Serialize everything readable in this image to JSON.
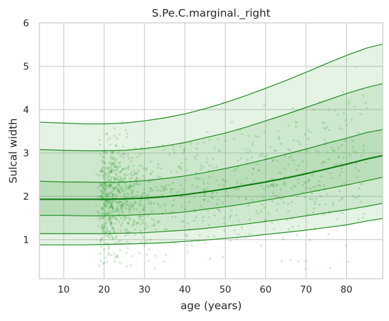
{
  "chart_data": {
    "type": "line",
    "title": "S.Pe.C.marginal._right",
    "xlabel": "age (years)",
    "ylabel": "Sulcal width",
    "xlim": [
      4,
      89
    ],
    "ylim": [
      0.1,
      6.0
    ],
    "xticks": [
      10,
      20,
      30,
      40,
      50,
      60,
      70,
      80
    ],
    "yticks": [
      1,
      2,
      3,
      4,
      5,
      6
    ],
    "grid": true,
    "colors": {
      "line": "#1e8c1e",
      "median": "#0a7a0a",
      "band": "#2ca02c",
      "points": "#2ca02c",
      "grid": "#cccccc",
      "frame": "#cccccc"
    },
    "percentile_x": [
      4,
      10,
      15,
      20,
      25,
      30,
      35,
      40,
      45,
      50,
      55,
      60,
      65,
      70,
      75,
      80,
      85,
      89
    ],
    "series": [
      {
        "values": [
          3.71,
          3.69,
          3.67,
          3.67,
          3.69,
          3.74,
          3.81,
          3.9,
          4.02,
          4.16,
          4.32,
          4.49,
          4.67,
          4.86,
          5.06,
          5.25,
          5.42,
          5.51
        ]
      },
      {
        "values": [
          3.08,
          3.06,
          3.05,
          3.05,
          3.06,
          3.1,
          3.16,
          3.24,
          3.35,
          3.46,
          3.59,
          3.74,
          3.89,
          4.05,
          4.21,
          4.37,
          4.51,
          4.6
        ]
      },
      {
        "values": [
          2.35,
          2.33,
          2.33,
          2.32,
          2.33,
          2.36,
          2.41,
          2.47,
          2.55,
          2.64,
          2.74,
          2.85,
          2.97,
          3.09,
          3.22,
          3.34,
          3.47,
          3.54
        ]
      },
      {
        "values": [
          1.93,
          1.93,
          1.93,
          1.93,
          1.94,
          1.96,
          1.99,
          2.04,
          2.1,
          2.17,
          2.25,
          2.33,
          2.42,
          2.52,
          2.63,
          2.74,
          2.86,
          2.94
        ]
      },
      {
        "values": [
          1.56,
          1.56,
          1.55,
          1.55,
          1.56,
          1.58,
          1.6,
          1.64,
          1.7,
          1.76,
          1.83,
          1.91,
          1.99,
          2.08,
          2.17,
          2.26,
          2.36,
          2.44
        ]
      },
      {
        "values": [
          1.14,
          1.14,
          1.14,
          1.14,
          1.15,
          1.16,
          1.19,
          1.22,
          1.26,
          1.31,
          1.36,
          1.42,
          1.48,
          1.55,
          1.62,
          1.69,
          1.77,
          1.84
        ]
      },
      {
        "values": [
          0.88,
          0.88,
          0.88,
          0.89,
          0.9,
          0.91,
          0.93,
          0.96,
          0.99,
          1.03,
          1.07,
          1.12,
          1.17,
          1.22,
          1.28,
          1.34,
          1.43,
          1.49
        ]
      }
    ],
    "scatter": {
      "count": 1100,
      "note_values_estimated": true
    }
  }
}
